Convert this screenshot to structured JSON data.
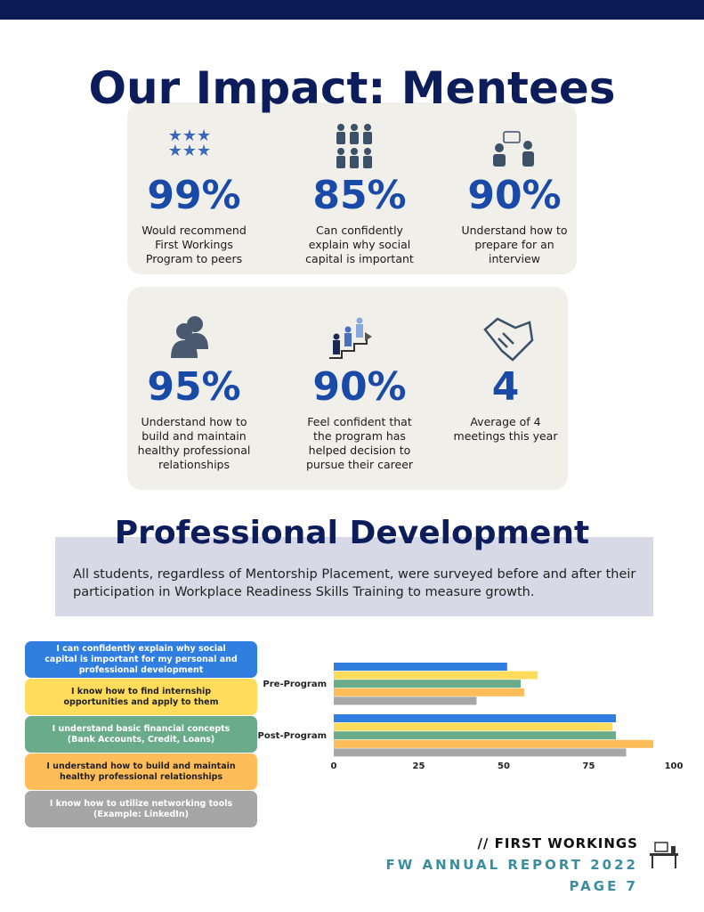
{
  "header": {
    "title": "Our Impact: Mentees"
  },
  "stats": [
    {
      "value": "99%",
      "label": "Would recommend First Workings Program to peers"
    },
    {
      "value": "85%",
      "label": "Can confidently explain why social capital is important"
    },
    {
      "value": "90%",
      "label": "Understand how to prepare for an interview"
    },
    {
      "value": "95%",
      "label": "Understand how to build and maintain healthy professional relationships"
    },
    {
      "value": "90%",
      "label": "Feel confident that the program has helped decision to pursue their career"
    },
    {
      "value": "4",
      "label": "Average of 4 meetings this year"
    }
  ],
  "section": {
    "title": "Professional Development",
    "text": "All students, regardless of Mentorship Placement, were surveyed before and after their participation in Workplace Readiness Skills Training to measure growth."
  },
  "chart_data": {
    "type": "hbar",
    "categories": [
      "Pre-Program",
      "Post-Program"
    ],
    "series": [
      {
        "name": "I can confidently explain why social capital is important for my personal and professional development",
        "color": "#2f7ee0",
        "values": [
          51,
          83
        ]
      },
      {
        "name": "I know how to find internship opportunities and apply to them",
        "color": "#ffdc5c",
        "values": [
          60,
          82
        ]
      },
      {
        "name": "I understand basic financial concepts (Bank Accounts, Credit, Loans)",
        "color": "#6aab8a",
        "values": [
          55,
          83
        ]
      },
      {
        "name": "I understand how to build and maintain healthy professional relationships",
        "color": "#ffbd5a",
        "values": [
          56,
          94
        ]
      },
      {
        "name": "I know how to utilize networking tools (Example: LinkedIn)",
        "color": "#a6a6a6",
        "values": [
          42,
          86
        ]
      }
    ],
    "xlim": [
      0,
      100
    ],
    "xticks": [
      0,
      25,
      50,
      75,
      100
    ]
  },
  "footer": {
    "brand": "// FIRST WORKINGS",
    "report": "FW ANNUAL REPORT 2022",
    "page": "PAGE 7"
  }
}
